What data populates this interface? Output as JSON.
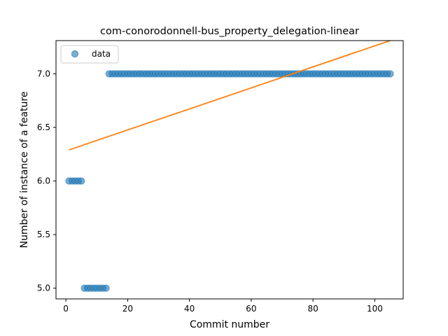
{
  "chart_data": {
    "type": "scatter",
    "title": "com-conorodonnell-bus_property_delegation-linear",
    "xlabel": "Commit number",
    "ylabel": "Number of instance of a feature",
    "xlim": [
      -3.2,
      109.2
    ],
    "ylim": [
      4.9,
      7.31
    ],
    "x_ticks": [
      0,
      20,
      40,
      60,
      80,
      100
    ],
    "y_ticks": [
      5.0,
      5.5,
      6.0,
      6.5,
      7.0
    ],
    "y_tick_labels": [
      "5.0",
      "5.5",
      "6.0",
      "6.5",
      "7.0"
    ],
    "grid": false,
    "legend_position": "upper-left",
    "series": [
      {
        "name": "data",
        "kind": "points",
        "color": "#1f77b4",
        "segments": [
          {
            "x_from": 1,
            "x_to": 5,
            "y": 6.0
          },
          {
            "x_from": 6,
            "x_to": 13,
            "y": 5.0
          },
          {
            "x_from": 14,
            "x_to": 105,
            "y": 7.0
          }
        ]
      },
      {
        "kind": "line",
        "color": "#ff7f0e",
        "x": [
          1,
          105
        ],
        "y": [
          6.29,
          7.31
        ]
      }
    ]
  }
}
